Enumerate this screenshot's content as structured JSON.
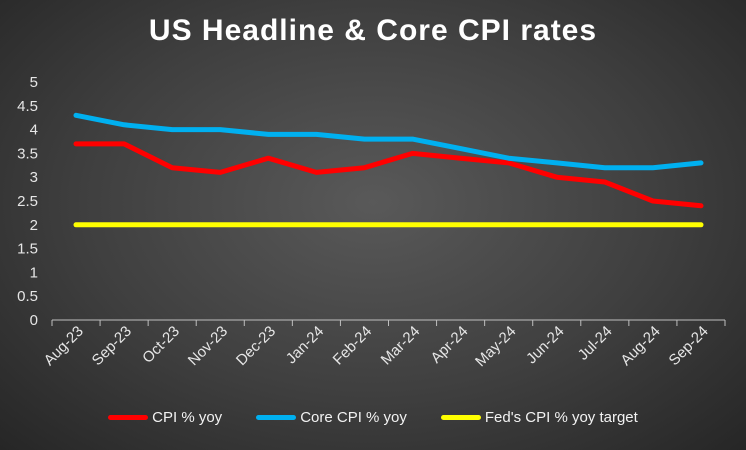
{
  "chart_data": {
    "type": "line",
    "title": "US Headline & Core CPI rates",
    "categories": [
      "Aug-23",
      "Sep-23",
      "Oct-23",
      "Nov-23",
      "Dec-23",
      "Jan-24",
      "Feb-24",
      "Mar-24",
      "Apr-24",
      "May-24",
      "Jun-24",
      "Jul-24",
      "Aug-24",
      "Sep-24"
    ],
    "ylim": [
      0,
      5
    ],
    "yticks": [
      "0",
      "0.5",
      "1",
      "1.5",
      "2",
      "2.5",
      "3",
      "3.5",
      "4",
      "4.5",
      "5"
    ],
    "grid": false,
    "legend_position": "bottom",
    "series": [
      {
        "name": "CPI % yoy",
        "color": "#ff0000",
        "values": [
          3.7,
          3.7,
          3.2,
          3.1,
          3.4,
          3.1,
          3.2,
          3.5,
          3.4,
          3.3,
          3.0,
          2.9,
          2.5,
          2.4
        ]
      },
      {
        "name": "Core CPI % yoy",
        "color": "#00b0f0",
        "values": [
          4.3,
          4.1,
          4.0,
          4.0,
          3.9,
          3.9,
          3.8,
          3.8,
          3.6,
          3.4,
          3.3,
          3.2,
          3.2,
          3.3
        ]
      },
      {
        "name": "Fed's CPI % yoy target",
        "color": "#ffff00",
        "values": [
          2,
          2,
          2,
          2,
          2,
          2,
          2,
          2,
          2,
          2,
          2,
          2,
          2,
          2
        ]
      }
    ]
  }
}
